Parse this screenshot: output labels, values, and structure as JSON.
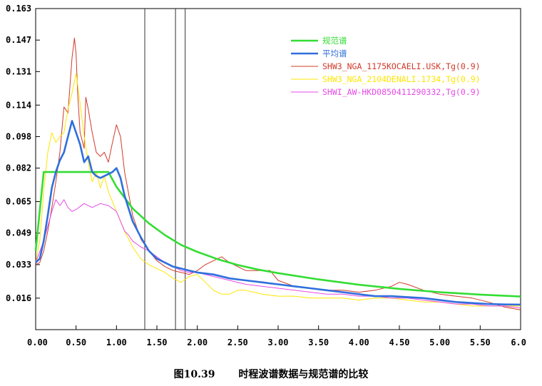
{
  "figure": {
    "number": "图10.39",
    "caption": "时程波谱数据与规范谱的比较"
  },
  "colors": {
    "code_spectrum": "#33dd33",
    "mean_spectrum": "#2f6fdd",
    "record1": "#d03a2a",
    "record2": "#ffe500",
    "record3": "#e64ae6",
    "axis": "#000000",
    "marker_line": "#333333"
  },
  "chart_data": {
    "type": "line",
    "title": "",
    "xlabel": "",
    "ylabel": "",
    "xlim": [
      0,
      6.0
    ],
    "ylim": [
      0,
      0.163
    ],
    "x_ticks": [
      "0.00",
      "0.50",
      "1.00",
      "1.50",
      "2.00",
      "2.50",
      "3.00",
      "3.50",
      "4.00",
      "4.50",
      "5.00",
      "5.50",
      "6.0"
    ],
    "x_tick_values": [
      0,
      0.5,
      1.0,
      1.5,
      2.0,
      2.5,
      3.0,
      3.5,
      4.0,
      4.5,
      5.0,
      5.5,
      6.0
    ],
    "y_ticks": [
      "0.016",
      "0.033",
      "0.049",
      "0.065",
      "0.082",
      "0.098",
      "0.114",
      "0.131",
      "0.147",
      "0.163"
    ],
    "y_tick_values": [
      0.016,
      0.033,
      0.049,
      0.065,
      0.082,
      0.098,
      0.114,
      0.131,
      0.147,
      0.163
    ],
    "grid": false,
    "legend_position": "top-right",
    "vertical_markers": [
      1.35,
      1.73,
      1.85
    ],
    "series": [
      {
        "name": "规范谱",
        "color_key": "code_spectrum",
        "width": 2.6,
        "x": [
          0.0,
          0.1,
          0.9,
          1.0,
          1.2,
          1.4,
          1.6,
          1.8,
          2.0,
          2.25,
          2.5,
          2.75,
          3.0,
          3.5,
          4.0,
          4.5,
          5.0,
          5.5,
          6.0
        ],
        "y": [
          0.04,
          0.08,
          0.08,
          0.0725,
          0.0615,
          0.054,
          0.048,
          0.043,
          0.0395,
          0.0358,
          0.0328,
          0.0305,
          0.0287,
          0.0255,
          0.0228,
          0.0207,
          0.019,
          0.0178,
          0.0168
        ]
      },
      {
        "name": "平均谱",
        "color_key": "mean_spectrum",
        "width": 2.6,
        "x": [
          0.0,
          0.05,
          0.1,
          0.15,
          0.2,
          0.25,
          0.3,
          0.35,
          0.4,
          0.45,
          0.5,
          0.55,
          0.6,
          0.65,
          0.7,
          0.75,
          0.8,
          0.85,
          0.9,
          0.95,
          1.0,
          1.05,
          1.1,
          1.2,
          1.3,
          1.4,
          1.5,
          1.6,
          1.7,
          1.8,
          1.9,
          2.0,
          2.2,
          2.4,
          2.6,
          2.8,
          3.0,
          3.2,
          3.4,
          3.6,
          3.8,
          4.0,
          4.2,
          4.4,
          4.6,
          4.8,
          5.0,
          5.2,
          5.4,
          5.6,
          5.8,
          6.0
        ],
        "y": [
          0.034,
          0.036,
          0.045,
          0.058,
          0.072,
          0.08,
          0.086,
          0.09,
          0.098,
          0.106,
          0.1,
          0.094,
          0.085,
          0.088,
          0.08,
          0.078,
          0.077,
          0.078,
          0.079,
          0.08,
          0.082,
          0.077,
          0.068,
          0.055,
          0.047,
          0.04,
          0.036,
          0.034,
          0.032,
          0.031,
          0.03,
          0.029,
          0.028,
          0.026,
          0.025,
          0.024,
          0.023,
          0.022,
          0.021,
          0.02,
          0.019,
          0.018,
          0.017,
          0.017,
          0.0165,
          0.016,
          0.015,
          0.014,
          0.0135,
          0.013,
          0.0128,
          0.0127
        ]
      },
      {
        "name": "SHW3_NGA_1175KOCAELI.USK,Tg(0.9)",
        "color_key": "record1",
        "width": 1.0,
        "x": [
          0.0,
          0.05,
          0.1,
          0.15,
          0.2,
          0.25,
          0.3,
          0.35,
          0.4,
          0.45,
          0.48,
          0.5,
          0.52,
          0.55,
          0.6,
          0.62,
          0.65,
          0.7,
          0.75,
          0.8,
          0.85,
          0.9,
          0.95,
          1.0,
          1.05,
          1.1,
          1.2,
          1.3,
          1.4,
          1.5,
          1.6,
          1.7,
          1.8,
          1.9,
          2.0,
          2.1,
          2.2,
          2.3,
          2.4,
          2.5,
          2.6,
          2.7,
          2.8,
          2.9,
          3.0,
          3.2,
          3.4,
          3.6,
          3.8,
          4.0,
          4.2,
          4.4,
          4.5,
          4.6,
          4.8,
          5.0,
          5.2,
          5.4,
          5.6,
          5.8,
          6.0
        ],
        "y": [
          0.033,
          0.034,
          0.04,
          0.05,
          0.062,
          0.075,
          0.09,
          0.113,
          0.11,
          0.138,
          0.148,
          0.14,
          0.12,
          0.1,
          0.092,
          0.118,
          0.112,
          0.1,
          0.09,
          0.088,
          0.09,
          0.085,
          0.095,
          0.104,
          0.098,
          0.08,
          0.058,
          0.046,
          0.04,
          0.035,
          0.032,
          0.03,
          0.029,
          0.028,
          0.03,
          0.033,
          0.035,
          0.037,
          0.034,
          0.032,
          0.03,
          0.03,
          0.03,
          0.03,
          0.025,
          0.022,
          0.021,
          0.02,
          0.02,
          0.019,
          0.02,
          0.022,
          0.024,
          0.023,
          0.02,
          0.018,
          0.017,
          0.016,
          0.014,
          0.0115,
          0.01
        ]
      },
      {
        "name": "SHW3_NGA_2104DENALI.1734,Tg(0.9)",
        "color_key": "record2",
        "width": 1.0,
        "x": [
          0.0,
          0.05,
          0.1,
          0.15,
          0.2,
          0.25,
          0.3,
          0.35,
          0.4,
          0.45,
          0.5,
          0.55,
          0.6,
          0.65,
          0.7,
          0.75,
          0.8,
          0.85,
          0.9,
          1.0,
          1.1,
          1.2,
          1.3,
          1.4,
          1.5,
          1.6,
          1.7,
          1.8,
          1.9,
          2.0,
          2.1,
          2.2,
          2.3,
          2.4,
          2.5,
          2.6,
          2.7,
          2.8,
          3.0,
          3.2,
          3.4,
          3.6,
          3.8,
          4.0,
          4.2,
          4.4,
          4.6,
          4.8,
          5.0,
          5.2,
          5.4,
          5.6,
          5.8,
          6.0
        ],
        "y": [
          0.034,
          0.045,
          0.07,
          0.09,
          0.1,
          0.095,
          0.098,
          0.1,
          0.112,
          0.12,
          0.13,
          0.115,
          0.098,
          0.085,
          0.075,
          0.08,
          0.072,
          0.078,
          0.07,
          0.06,
          0.05,
          0.042,
          0.036,
          0.033,
          0.031,
          0.029,
          0.026,
          0.024,
          0.027,
          0.028,
          0.024,
          0.02,
          0.018,
          0.018,
          0.02,
          0.02,
          0.019,
          0.018,
          0.017,
          0.017,
          0.016,
          0.016,
          0.016,
          0.015,
          0.016,
          0.016,
          0.015,
          0.014,
          0.014,
          0.013,
          0.012,
          0.012,
          0.012,
          0.012
        ]
      },
      {
        "name": "SHWI_AW-HKD0850411290332,Tg(0.9)",
        "color_key": "record3",
        "width": 1.0,
        "x": [
          0.0,
          0.1,
          0.2,
          0.25,
          0.3,
          0.35,
          0.4,
          0.45,
          0.5,
          0.6,
          0.7,
          0.8,
          0.9,
          1.0,
          1.05,
          1.1,
          1.15,
          1.2,
          1.3,
          1.4,
          1.5,
          1.6,
          1.7,
          1.8,
          1.9,
          2.0,
          2.2,
          2.4,
          2.6,
          2.8,
          3.0,
          3.2,
          3.4,
          3.6,
          3.8,
          4.0,
          4.2,
          4.4,
          4.6,
          4.8,
          5.0,
          5.2,
          5.4,
          5.6,
          5.8,
          6.0
        ],
        "y": [
          0.034,
          0.045,
          0.06,
          0.066,
          0.063,
          0.066,
          0.062,
          0.06,
          0.061,
          0.064,
          0.062,
          0.064,
          0.063,
          0.06,
          0.055,
          0.05,
          0.048,
          0.045,
          0.042,
          0.04,
          0.037,
          0.034,
          0.032,
          0.03,
          0.029,
          0.029,
          0.027,
          0.025,
          0.023,
          0.022,
          0.021,
          0.02,
          0.019,
          0.018,
          0.018,
          0.017,
          0.017,
          0.016,
          0.016,
          0.015,
          0.014,
          0.013,
          0.013,
          0.012,
          0.012,
          0.011
        ]
      }
    ]
  }
}
